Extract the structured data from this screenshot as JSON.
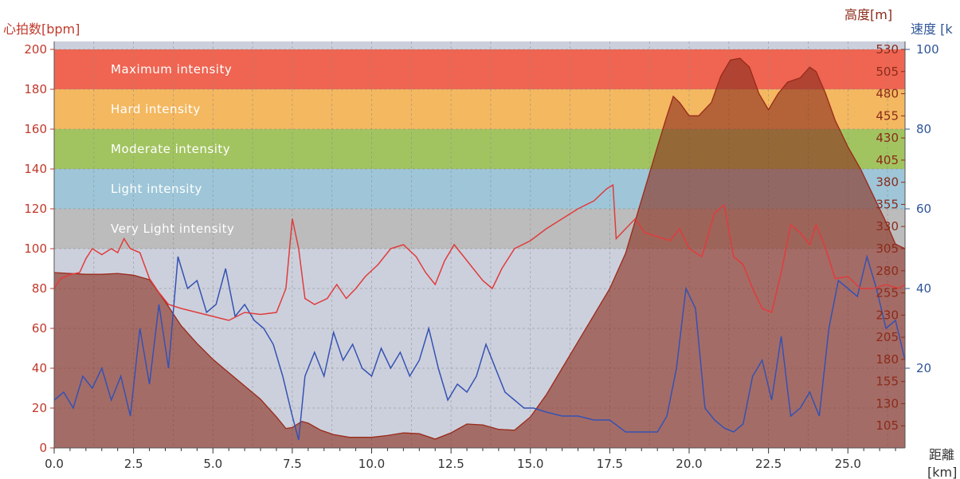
{
  "colors": {
    "plot_bg": "#ccd0dd",
    "hr_axis": "#c0392b",
    "alt_axis": "#8b2b1a",
    "speed_axis": "#2f5597",
    "x_axis": "#333333",
    "hr_line": "#e03c3c",
    "speed_line": "#3552b2",
    "alt_fill": "#8b2e1f",
    "alt_line": "#9a2a1a",
    "grid": "#8a8a8a"
  },
  "labels": {
    "hr_axis_title": "心拍数[bpm]",
    "alt_axis_title": "高度[m]",
    "speed_axis_title": "速度 [k",
    "x_axis_title_1": "距離",
    "x_axis_title_2": "[km]"
  },
  "chart_data": {
    "type": "line",
    "title": "",
    "xlabel": "距離[km]",
    "xlim": [
      0,
      26.8
    ],
    "x_ticks": [
      "0.0",
      "2.5",
      "5.0",
      "7.5",
      "10.0",
      "12.5",
      "15.0",
      "17.5",
      "20.0",
      "22.5",
      "25.0"
    ],
    "x_tick_values": [
      0,
      2.5,
      5,
      7.5,
      10,
      12.5,
      15,
      17.5,
      20,
      22.5,
      25
    ],
    "axes": {
      "heart_rate": {
        "label": "心拍数[bpm]",
        "range": [
          0,
          200
        ],
        "ticks": [
          "0",
          "20",
          "40",
          "60",
          "80",
          "100",
          "120",
          "140",
          "160",
          "180",
          "200"
        ]
      },
      "altitude": {
        "label": "高度[m]",
        "range": [
          80,
          530
        ],
        "ticks": [
          "105",
          "130",
          "155",
          "180",
          "205",
          "230",
          "255",
          "280",
          "305",
          "330",
          "355",
          "380",
          "405",
          "430",
          "455",
          "480",
          "505",
          "530"
        ]
      },
      "speed": {
        "label": "速度 [km/h]",
        "range": [
          0,
          100
        ],
        "ticks": [
          "20",
          "40",
          "60",
          "80",
          "100"
        ]
      }
    },
    "zones": [
      {
        "name": "Very Light intensity",
        "from": 100,
        "to": 120,
        "color": "#bcbcbc"
      },
      {
        "name": "Light intensity",
        "from": 120,
        "to": 140,
        "color": "#9ec6d8"
      },
      {
        "name": "Moderate intensity",
        "from": 140,
        "to": 160,
        "color": "#a2c460"
      },
      {
        "name": "Hard intensity",
        "from": 160,
        "to": 180,
        "color": "#f4b860"
      },
      {
        "name": "Maximum intensity",
        "from": 180,
        "to": 200,
        "color": "#ef6552"
      }
    ],
    "series": [
      {
        "name": "心拍数",
        "axis": "heart_rate",
        "points": [
          [
            0,
            80
          ],
          [
            0.2,
            85
          ],
          [
            0.5,
            87
          ],
          [
            0.8,
            88
          ],
          [
            1.0,
            95
          ],
          [
            1.2,
            100
          ],
          [
            1.5,
            97
          ],
          [
            1.8,
            100
          ],
          [
            2.0,
            98
          ],
          [
            2.2,
            105
          ],
          [
            2.4,
            100
          ],
          [
            2.7,
            98
          ],
          [
            3.0,
            85
          ],
          [
            3.3,
            78
          ],
          [
            3.6,
            72
          ],
          [
            4.0,
            70
          ],
          [
            4.5,
            68
          ],
          [
            5.0,
            66
          ],
          [
            5.5,
            64
          ],
          [
            6.0,
            68
          ],
          [
            6.5,
            67
          ],
          [
            7.0,
            68
          ],
          [
            7.3,
            80
          ],
          [
            7.5,
            115
          ],
          [
            7.7,
            100
          ],
          [
            7.9,
            75
          ],
          [
            8.2,
            72
          ],
          [
            8.6,
            75
          ],
          [
            8.9,
            82
          ],
          [
            9.2,
            75
          ],
          [
            9.5,
            80
          ],
          [
            9.8,
            86
          ],
          [
            10.2,
            92
          ],
          [
            10.6,
            100
          ],
          [
            11.0,
            102
          ],
          [
            11.4,
            96
          ],
          [
            11.7,
            88
          ],
          [
            12.0,
            82
          ],
          [
            12.3,
            94
          ],
          [
            12.6,
            102
          ],
          [
            12.9,
            96
          ],
          [
            13.2,
            90
          ],
          [
            13.5,
            84
          ],
          [
            13.8,
            80
          ],
          [
            14.1,
            90
          ],
          [
            14.5,
            100
          ],
          [
            15.0,
            104
          ],
          [
            15.5,
            110
          ],
          [
            16.0,
            115
          ],
          [
            16.5,
            120
          ],
          [
            17.0,
            124
          ],
          [
            17.4,
            130
          ],
          [
            17.6,
            132
          ],
          [
            17.7,
            105
          ],
          [
            18.0,
            110
          ],
          [
            18.3,
            115
          ],
          [
            18.6,
            108
          ],
          [
            19.0,
            106
          ],
          [
            19.4,
            104
          ],
          [
            19.7,
            110
          ],
          [
            20.0,
            100
          ],
          [
            20.4,
            96
          ],
          [
            20.8,
            118
          ],
          [
            21.1,
            122
          ],
          [
            21.4,
            96
          ],
          [
            21.7,
            92
          ],
          [
            22.0,
            80
          ],
          [
            22.3,
            70
          ],
          [
            22.6,
            68
          ],
          [
            22.9,
            88
          ],
          [
            23.2,
            112
          ],
          [
            23.5,
            108
          ],
          [
            23.8,
            102
          ],
          [
            24.0,
            112
          ],
          [
            24.3,
            100
          ],
          [
            24.6,
            85
          ],
          [
            25.0,
            86
          ],
          [
            25.4,
            80
          ],
          [
            25.8,
            80
          ],
          [
            26.2,
            82
          ],
          [
            26.6,
            80
          ],
          [
            26.8,
            82
          ]
        ]
      },
      {
        "name": "速度",
        "axis": "speed",
        "points": [
          [
            0,
            12
          ],
          [
            0.3,
            14
          ],
          [
            0.6,
            10
          ],
          [
            0.9,
            18
          ],
          [
            1.2,
            15
          ],
          [
            1.5,
            20
          ],
          [
            1.8,
            12
          ],
          [
            2.1,
            18
          ],
          [
            2.4,
            8
          ],
          [
            2.7,
            30
          ],
          [
            3.0,
            16
          ],
          [
            3.3,
            36
          ],
          [
            3.6,
            20
          ],
          [
            3.9,
            48
          ],
          [
            4.2,
            40
          ],
          [
            4.5,
            42
          ],
          [
            4.8,
            34
          ],
          [
            5.1,
            36
          ],
          [
            5.4,
            45
          ],
          [
            5.7,
            33
          ],
          [
            6.0,
            36
          ],
          [
            6.3,
            32
          ],
          [
            6.6,
            30
          ],
          [
            6.9,
            26
          ],
          [
            7.2,
            18
          ],
          [
            7.5,
            8
          ],
          [
            7.7,
            2
          ],
          [
            7.9,
            18
          ],
          [
            8.2,
            24
          ],
          [
            8.5,
            18
          ],
          [
            8.8,
            29
          ],
          [
            9.1,
            22
          ],
          [
            9.4,
            26
          ],
          [
            9.7,
            20
          ],
          [
            10.0,
            18
          ],
          [
            10.3,
            25
          ],
          [
            10.6,
            20
          ],
          [
            10.9,
            24
          ],
          [
            11.2,
            18
          ],
          [
            11.5,
            22
          ],
          [
            11.8,
            30
          ],
          [
            12.1,
            20
          ],
          [
            12.4,
            12
          ],
          [
            12.7,
            16
          ],
          [
            13.0,
            14
          ],
          [
            13.3,
            18
          ],
          [
            13.6,
            26
          ],
          [
            13.9,
            20
          ],
          [
            14.2,
            14
          ],
          [
            14.5,
            12
          ],
          [
            14.8,
            10
          ],
          [
            15.1,
            10
          ],
          [
            15.5,
            9
          ],
          [
            16.0,
            8
          ],
          [
            16.5,
            8
          ],
          [
            17.0,
            7
          ],
          [
            17.5,
            7
          ],
          [
            18.0,
            4
          ],
          [
            18.5,
            4
          ],
          [
            19.0,
            4
          ],
          [
            19.3,
            8
          ],
          [
            19.6,
            20
          ],
          [
            19.9,
            40
          ],
          [
            20.2,
            35
          ],
          [
            20.5,
            10
          ],
          [
            20.8,
            7
          ],
          [
            21.1,
            5
          ],
          [
            21.4,
            4
          ],
          [
            21.7,
            6
          ],
          [
            22.0,
            18
          ],
          [
            22.3,
            22
          ],
          [
            22.6,
            12
          ],
          [
            22.9,
            28
          ],
          [
            23.2,
            8
          ],
          [
            23.5,
            10
          ],
          [
            23.8,
            14
          ],
          [
            24.1,
            8
          ],
          [
            24.4,
            30
          ],
          [
            24.7,
            42
          ],
          [
            25.0,
            40
          ],
          [
            25.3,
            38
          ],
          [
            25.6,
            48
          ],
          [
            25.9,
            40
          ],
          [
            26.2,
            30
          ],
          [
            26.5,
            32
          ],
          [
            26.8,
            22
          ]
        ]
      },
      {
        "name": "高度",
        "axis": "altitude",
        "points": [
          [
            0,
            278
          ],
          [
            0.5,
            277
          ],
          [
            1.0,
            276
          ],
          [
            1.5,
            276
          ],
          [
            2.0,
            277
          ],
          [
            2.5,
            275
          ],
          [
            3.0,
            270
          ],
          [
            3.5,
            245
          ],
          [
            4.0,
            218
          ],
          [
            4.5,
            198
          ],
          [
            5.0,
            180
          ],
          [
            5.5,
            165
          ],
          [
            6.0,
            150
          ],
          [
            6.5,
            135
          ],
          [
            7.0,
            115
          ],
          [
            7.3,
            102
          ],
          [
            7.5,
            103
          ],
          [
            7.8,
            110
          ],
          [
            8.0,
            108
          ],
          [
            8.4,
            100
          ],
          [
            8.8,
            95
          ],
          [
            9.3,
            92
          ],
          [
            10.0,
            92
          ],
          [
            10.5,
            94
          ],
          [
            11.0,
            97
          ],
          [
            11.5,
            96
          ],
          [
            12.0,
            90
          ],
          [
            12.5,
            97
          ],
          [
            13.0,
            107
          ],
          [
            13.5,
            106
          ],
          [
            14.0,
            101
          ],
          [
            14.5,
            100
          ],
          [
            15.0,
            115
          ],
          [
            15.5,
            140
          ],
          [
            16.0,
            170
          ],
          [
            16.5,
            200
          ],
          [
            17.0,
            230
          ],
          [
            17.5,
            260
          ],
          [
            18.0,
            300
          ],
          [
            18.5,
            360
          ],
          [
            19.0,
            420
          ],
          [
            19.3,
            455
          ],
          [
            19.5,
            477
          ],
          [
            19.7,
            470
          ],
          [
            20.0,
            455
          ],
          [
            20.3,
            455
          ],
          [
            20.7,
            470
          ],
          [
            21.0,
            500
          ],
          [
            21.3,
            518
          ],
          [
            21.6,
            520
          ],
          [
            21.9,
            510
          ],
          [
            22.2,
            480
          ],
          [
            22.5,
            462
          ],
          [
            22.8,
            480
          ],
          [
            23.1,
            493
          ],
          [
            23.5,
            498
          ],
          [
            23.8,
            510
          ],
          [
            24.0,
            505
          ],
          [
            24.3,
            480
          ],
          [
            24.6,
            450
          ],
          [
            25.0,
            420
          ],
          [
            25.4,
            395
          ],
          [
            25.8,
            365
          ],
          [
            26.2,
            335
          ],
          [
            26.5,
            310
          ],
          [
            26.8,
            305
          ]
        ]
      }
    ],
    "grid": true
  }
}
